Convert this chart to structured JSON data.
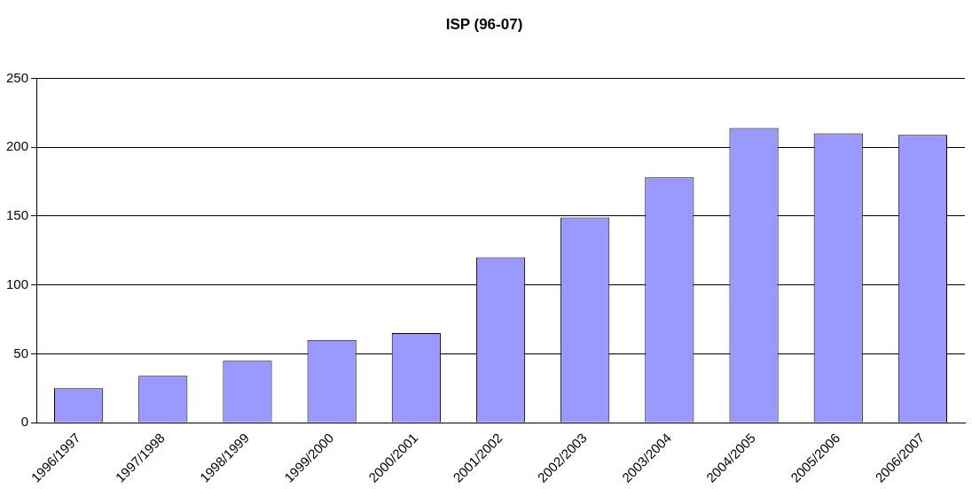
{
  "chart_data": {
    "type": "bar",
    "title": "ISP (96-07)",
    "categories": [
      "1996/1997",
      "1997/1998",
      "1998/1999",
      "1999/2000",
      "2000/2001",
      "2001/2002",
      "2002/2003",
      "2003/2004",
      "2004/2005",
      "2005/2006",
      "2006/2007"
    ],
    "values": [
      25,
      34,
      45,
      60,
      65,
      120,
      149,
      178,
      214,
      210,
      209
    ],
    "color": "#9999ff",
    "ylim": [
      0,
      250
    ],
    "yticks": [
      0,
      50,
      100,
      150,
      200,
      250
    ],
    "grid": "y",
    "legend": false
  }
}
